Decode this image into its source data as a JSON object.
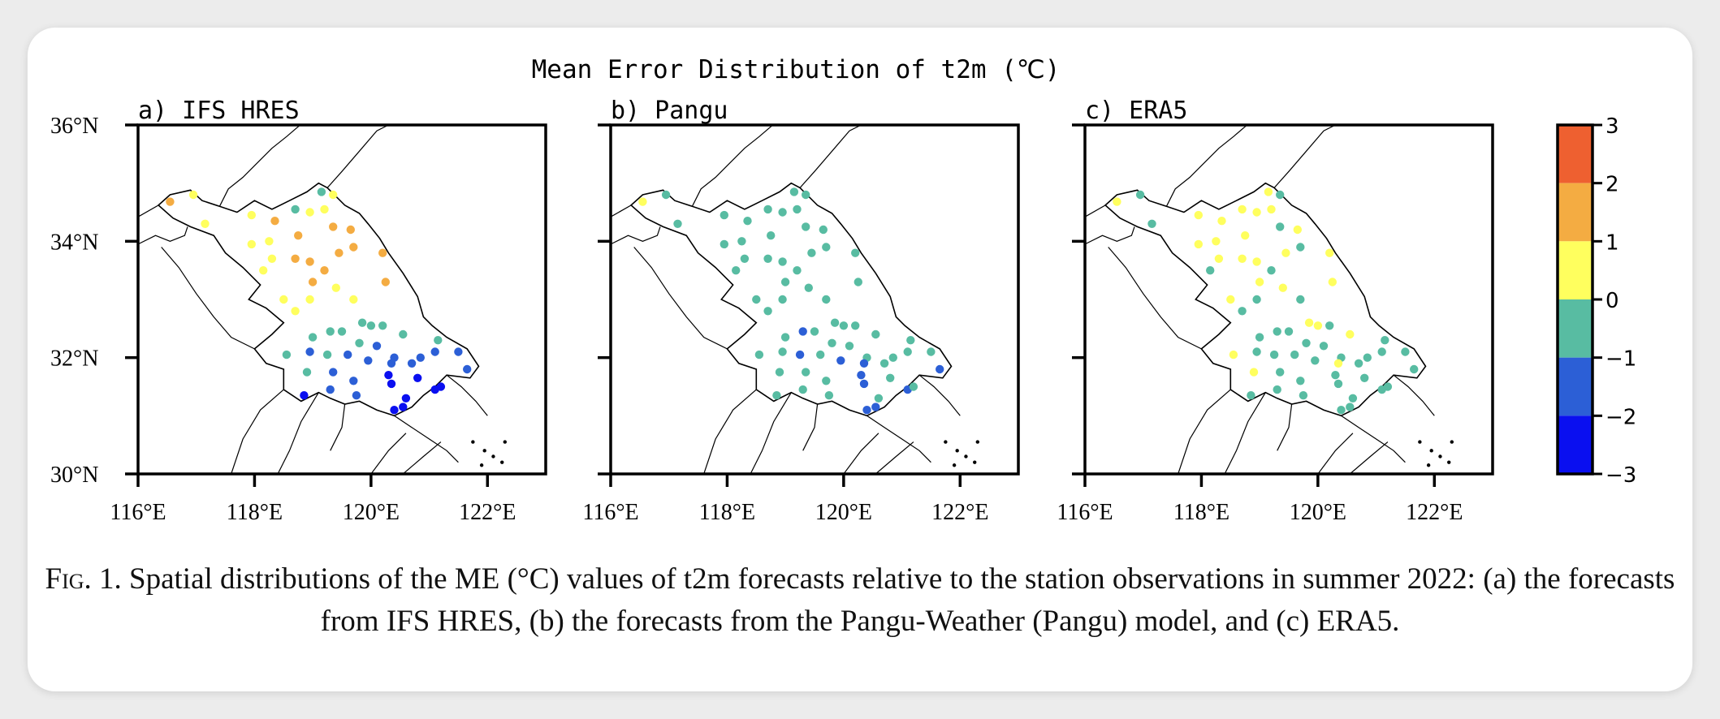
{
  "figure": {
    "title": "Mean Error Distribution of t2m (℃)",
    "panels": [
      {
        "label": "a)",
        "name": "IFS HRES",
        "key": "ifs"
      },
      {
        "label": "b)",
        "name": "Pangu",
        "key": "pangu"
      },
      {
        "label": "c)",
        "name": "ERA5",
        "key": "era5"
      }
    ],
    "lat_ticks": [
      {
        "value": 36,
        "label": "36°N"
      },
      {
        "value": 34,
        "label": "34°N"
      },
      {
        "value": 32,
        "label": "32°N"
      },
      {
        "value": 30,
        "label": "30°N"
      }
    ],
    "lon_ticks": [
      {
        "value": 116,
        "label": "116°E"
      },
      {
        "value": 118,
        "label": "118°E"
      },
      {
        "value": 120,
        "label": "120°E"
      },
      {
        "value": 122,
        "label": "122°E"
      }
    ],
    "extent": {
      "lon_min": 116,
      "lon_max": 123,
      "lat_min": 30,
      "lat_max": 36
    },
    "colorbar": {
      "ticks": [
        {
          "value": 3,
          "label": "3"
        },
        {
          "value": 2,
          "label": "2"
        },
        {
          "value": 1,
          "label": "1"
        },
        {
          "value": 0,
          "label": "0"
        },
        {
          "value": -1,
          "label": "−1"
        },
        {
          "value": -2,
          "label": "−2"
        },
        {
          "value": -3,
          "label": "−3"
        }
      ],
      "bins": [
        {
          "min": 2,
          "max": 3,
          "color": "#ee6030"
        },
        {
          "min": 1,
          "max": 2,
          "color": "#f4ac42"
        },
        {
          "min": 0,
          "max": 1,
          "color": "#ffff5e"
        },
        {
          "min": -1,
          "max": 0,
          "color": "#58bca2"
        },
        {
          "min": -2,
          "max": -1,
          "color": "#2c5fd6"
        },
        {
          "min": -3,
          "max": -2,
          "color": "#0a0ff0"
        }
      ]
    }
  },
  "caption": {
    "fig_label": "Fig. 1.",
    "text": "Spatial distributions of the ME (°C) values of t2m forecasts relative to the station observations in summer 2022: (a) the forecasts from IFS HRES, (b) the forecasts from the Pangu-Weather (Pangu) model, and (c) ERA5."
  },
  "stations": [
    [
      116.55,
      34.68
    ],
    [
      116.95,
      34.8
    ],
    [
      117.15,
      34.3
    ],
    [
      117.95,
      34.45
    ],
    [
      118.25,
      34.0
    ],
    [
      118.35,
      34.35
    ],
    [
      118.7,
      34.55
    ],
    [
      119.15,
      34.85
    ],
    [
      119.35,
      34.8
    ],
    [
      118.75,
      34.1
    ],
    [
      118.95,
      34.5
    ],
    [
      119.2,
      34.55
    ],
    [
      119.35,
      34.25
    ],
    [
      119.65,
      34.2
    ],
    [
      117.95,
      33.95
    ],
    [
      118.15,
      33.5
    ],
    [
      118.3,
      33.7
    ],
    [
      118.7,
      33.7
    ],
    [
      118.95,
      33.65
    ],
    [
      119.2,
      33.5
    ],
    [
      119.45,
      33.8
    ],
    [
      119.7,
      33.9
    ],
    [
      120.2,
      33.8
    ],
    [
      120.25,
      33.3
    ],
    [
      119.0,
      33.3
    ],
    [
      119.4,
      33.2
    ],
    [
      119.7,
      33.0
    ],
    [
      118.5,
      33.0
    ],
    [
      118.95,
      33.0
    ],
    [
      118.7,
      32.8
    ],
    [
      119.85,
      32.6
    ],
    [
      120.2,
      32.55
    ],
    [
      119.3,
      32.45
    ],
    [
      119.5,
      32.45
    ],
    [
      120.0,
      32.55
    ],
    [
      120.55,
      32.4
    ],
    [
      119.0,
      32.35
    ],
    [
      119.8,
      32.25
    ],
    [
      120.1,
      32.2
    ],
    [
      120.4,
      32.0
    ],
    [
      120.85,
      32.0
    ],
    [
      121.15,
      32.3
    ],
    [
      118.55,
      32.05
    ],
    [
      118.95,
      32.1
    ],
    [
      119.25,
      32.05
    ],
    [
      119.6,
      32.05
    ],
    [
      119.95,
      31.95
    ],
    [
      120.35,
      31.9
    ],
    [
      120.7,
      31.9
    ],
    [
      121.1,
      32.1
    ],
    [
      121.5,
      32.1
    ],
    [
      121.65,
      31.8
    ],
    [
      118.9,
      31.75
    ],
    [
      119.35,
      31.75
    ],
    [
      119.7,
      31.6
    ],
    [
      120.3,
      31.7
    ],
    [
      120.8,
      31.65
    ],
    [
      118.85,
      31.35
    ],
    [
      119.3,
      31.45
    ],
    [
      119.75,
      31.35
    ],
    [
      120.35,
      31.55
    ],
    [
      121.1,
      31.45
    ],
    [
      121.2,
      31.5
    ],
    [
      120.6,
      31.3
    ],
    [
      120.4,
      31.1
    ],
    [
      120.55,
      31.15
    ]
  ],
  "values": {
    "ifs": [
      1.5,
      0.5,
      0.5,
      0.5,
      0.5,
      1.5,
      -0.5,
      -0.5,
      0.5,
      1.5,
      0.5,
      0.5,
      1.5,
      1.5,
      0.5,
      0.5,
      0.5,
      1.5,
      1.5,
      1.5,
      1.5,
      1.5,
      1.5,
      1.5,
      1.5,
      0.5,
      0.5,
      0.5,
      0.5,
      0.5,
      -0.5,
      -0.5,
      -0.5,
      -0.5,
      -0.5,
      -0.5,
      -0.5,
      -0.5,
      -1.5,
      -1.5,
      -1.5,
      -0.5,
      -0.5,
      -1.5,
      -0.5,
      -1.5,
      -1.5,
      -1.5,
      -1.5,
      -1.5,
      -1.5,
      -1.5,
      -0.5,
      -1.5,
      -1.5,
      -2.5,
      -2.5,
      -2.5,
      -1.5,
      -1.5,
      -2.5,
      -2.5,
      -2.5,
      -2.5,
      -2.5,
      -2.5
    ],
    "pangu": [
      0.5,
      -0.5,
      -0.5,
      -0.5,
      -0.5,
      -0.5,
      -0.5,
      -0.5,
      -0.5,
      -0.5,
      -0.5,
      -0.5,
      -0.5,
      -0.5,
      -0.5,
      -0.5,
      -0.5,
      -0.5,
      -0.5,
      -0.5,
      -0.5,
      -0.5,
      -0.5,
      -0.5,
      -0.5,
      -0.5,
      -0.5,
      -0.5,
      -0.5,
      -0.5,
      -0.5,
      -0.5,
      -1.5,
      -0.5,
      -0.5,
      -0.5,
      -0.5,
      -0.5,
      -0.5,
      -0.5,
      -0.5,
      -0.5,
      -0.5,
      -0.5,
      -1.5,
      -0.5,
      -1.5,
      -1.5,
      -0.5,
      -0.5,
      -0.5,
      -1.5,
      -0.5,
      -0.5,
      -0.5,
      -1.5,
      -0.5,
      -0.5,
      -0.5,
      -0.5,
      -1.5,
      -1.5,
      -0.5,
      -0.5,
      -1.5,
      -1.5
    ],
    "era5": [
      0.5,
      -0.5,
      -0.5,
      0.5,
      0.5,
      0.5,
      0.5,
      0.5,
      -0.5,
      0.5,
      0.5,
      0.5,
      -0.5,
      0.5,
      0.5,
      -0.5,
      0.5,
      0.5,
      0.5,
      -0.5,
      0.5,
      -0.5,
      0.5,
      0.5,
      0.5,
      0.5,
      -0.5,
      0.5,
      -0.5,
      -0.5,
      0.5,
      -0.5,
      -0.5,
      -0.5,
      0.5,
      0.5,
      -0.5,
      -0.5,
      -0.5,
      -0.5,
      -0.5,
      -0.5,
      0.5,
      -0.5,
      -0.5,
      -0.5,
      -0.5,
      0.5,
      -0.5,
      -0.5,
      -0.5,
      -0.5,
      0.5,
      -0.5,
      -0.5,
      -0.5,
      -0.5,
      -0.5,
      -0.5,
      -0.5,
      -0.5,
      -0.5,
      -0.5,
      -0.5,
      -0.5,
      -0.5
    ]
  }
}
